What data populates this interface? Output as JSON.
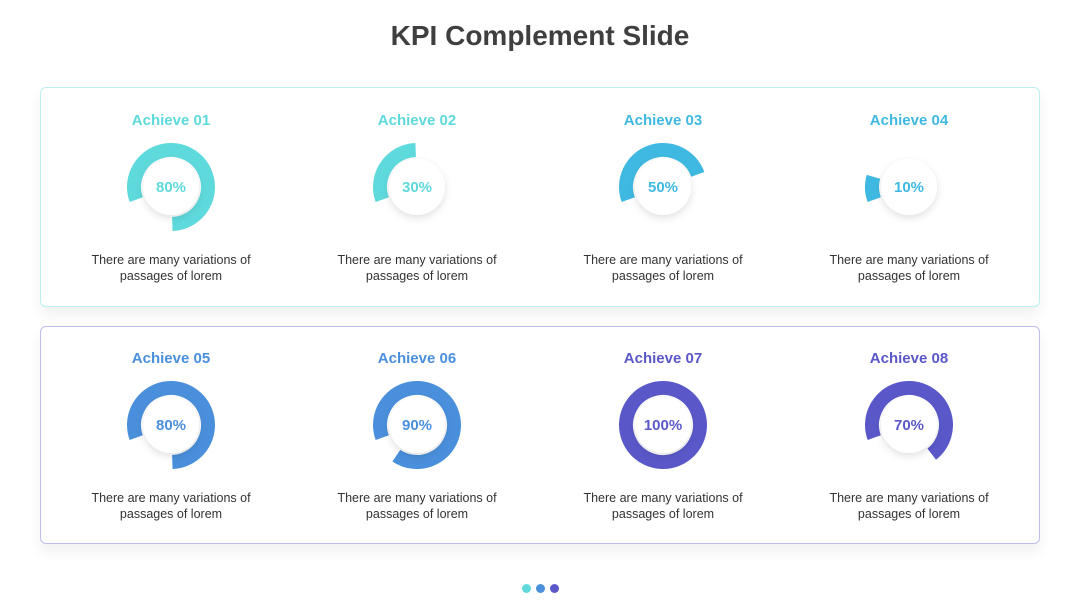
{
  "title": "KPI Complement Slide",
  "kpis": [
    {
      "label": "Achieve 01",
      "value": 80,
      "value_label": "80%",
      "color": "#5ed9dc",
      "description": "There are many variations of passages of lorem"
    },
    {
      "label": "Achieve 02",
      "value": 30,
      "value_label": "30%",
      "color": "#5ed9dc",
      "description": "There are many variations of passages of lorem"
    },
    {
      "label": "Achieve 03",
      "value": 50,
      "value_label": "50%",
      "color": "#3fb9e1",
      "description": "There are many variations of passages of lorem"
    },
    {
      "label": "Achieve 04",
      "value": 10,
      "value_label": "10%",
      "color": "#3fb9e1",
      "description": "There are many variations of passages of lorem"
    },
    {
      "label": "Achieve 05",
      "value": 80,
      "value_label": "80%",
      "color": "#4a8fdb",
      "description": "There are many variations of passages of lorem"
    },
    {
      "label": "Achieve 06",
      "value": 90,
      "value_label": "90%",
      "color": "#4a8fdb",
      "description": "There are many variations of passages of lorem"
    },
    {
      "label": "Achieve 07",
      "value": 100,
      "value_label": "100%",
      "color": "#5a58c9",
      "description": "There are many variations of passages of lorem"
    },
    {
      "label": "Achieve 08",
      "value": 70,
      "value_label": "70%",
      "color": "#5a58c9",
      "description": "There are many variations of passages of lorem"
    }
  ]
}
